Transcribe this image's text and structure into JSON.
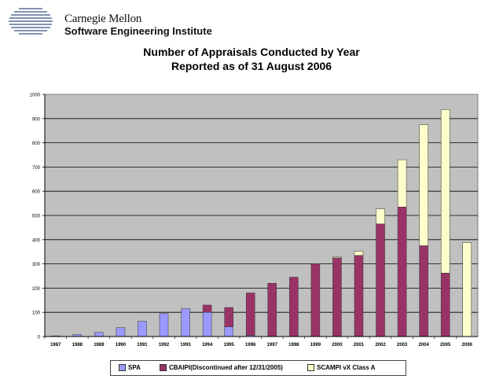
{
  "header": {
    "org_line1": "Carnegie Mellon",
    "org_line2": "Software Engineering Institute"
  },
  "chart_data": {
    "type": "bar",
    "title": "Number of Appraisals Conducted by Year",
    "subtitle": "Reported as of 31 August 2006",
    "categories": [
      "1987",
      "1988",
      "1989",
      "1990",
      "1991",
      "1992",
      "1993",
      "1994",
      "1995",
      "1996",
      "1997",
      "1998",
      "1999",
      "2000",
      "2001",
      "2002",
      "2003",
      "2004",
      "2005",
      "2006"
    ],
    "stacked": true,
    "series": [
      {
        "name": "SPA",
        "color": "#9999ff",
        "values": [
          3,
          8,
          17,
          37,
          63,
          95,
          115,
          100,
          40,
          5,
          0,
          0,
          0,
          0,
          0,
          0,
          0,
          0,
          0,
          0
        ]
      },
      {
        "name": "CBAIPI(Discontinued after 12/31/2005)",
        "color": "#993366",
        "values": [
          0,
          0,
          0,
          0,
          0,
          0,
          0,
          30,
          80,
          175,
          220,
          245,
          300,
          325,
          335,
          465,
          535,
          375,
          262,
          0
        ]
      },
      {
        "name": "SCAMPI vX Class A",
        "color": "#ffffcc",
        "values": [
          0,
          0,
          0,
          0,
          0,
          0,
          0,
          0,
          0,
          0,
          0,
          0,
          0,
          5,
          17,
          62,
          195,
          500,
          675,
          388
        ]
      }
    ],
    "ylim": [
      0,
      1000
    ],
    "yticks": [
      "0",
      "100",
      "200",
      "300",
      "400",
      "500",
      "600",
      "700",
      "800",
      "900",
      "1000"
    ],
    "grid": true,
    "plot_background": "#c0c0c0",
    "legend_position": "bottom"
  }
}
